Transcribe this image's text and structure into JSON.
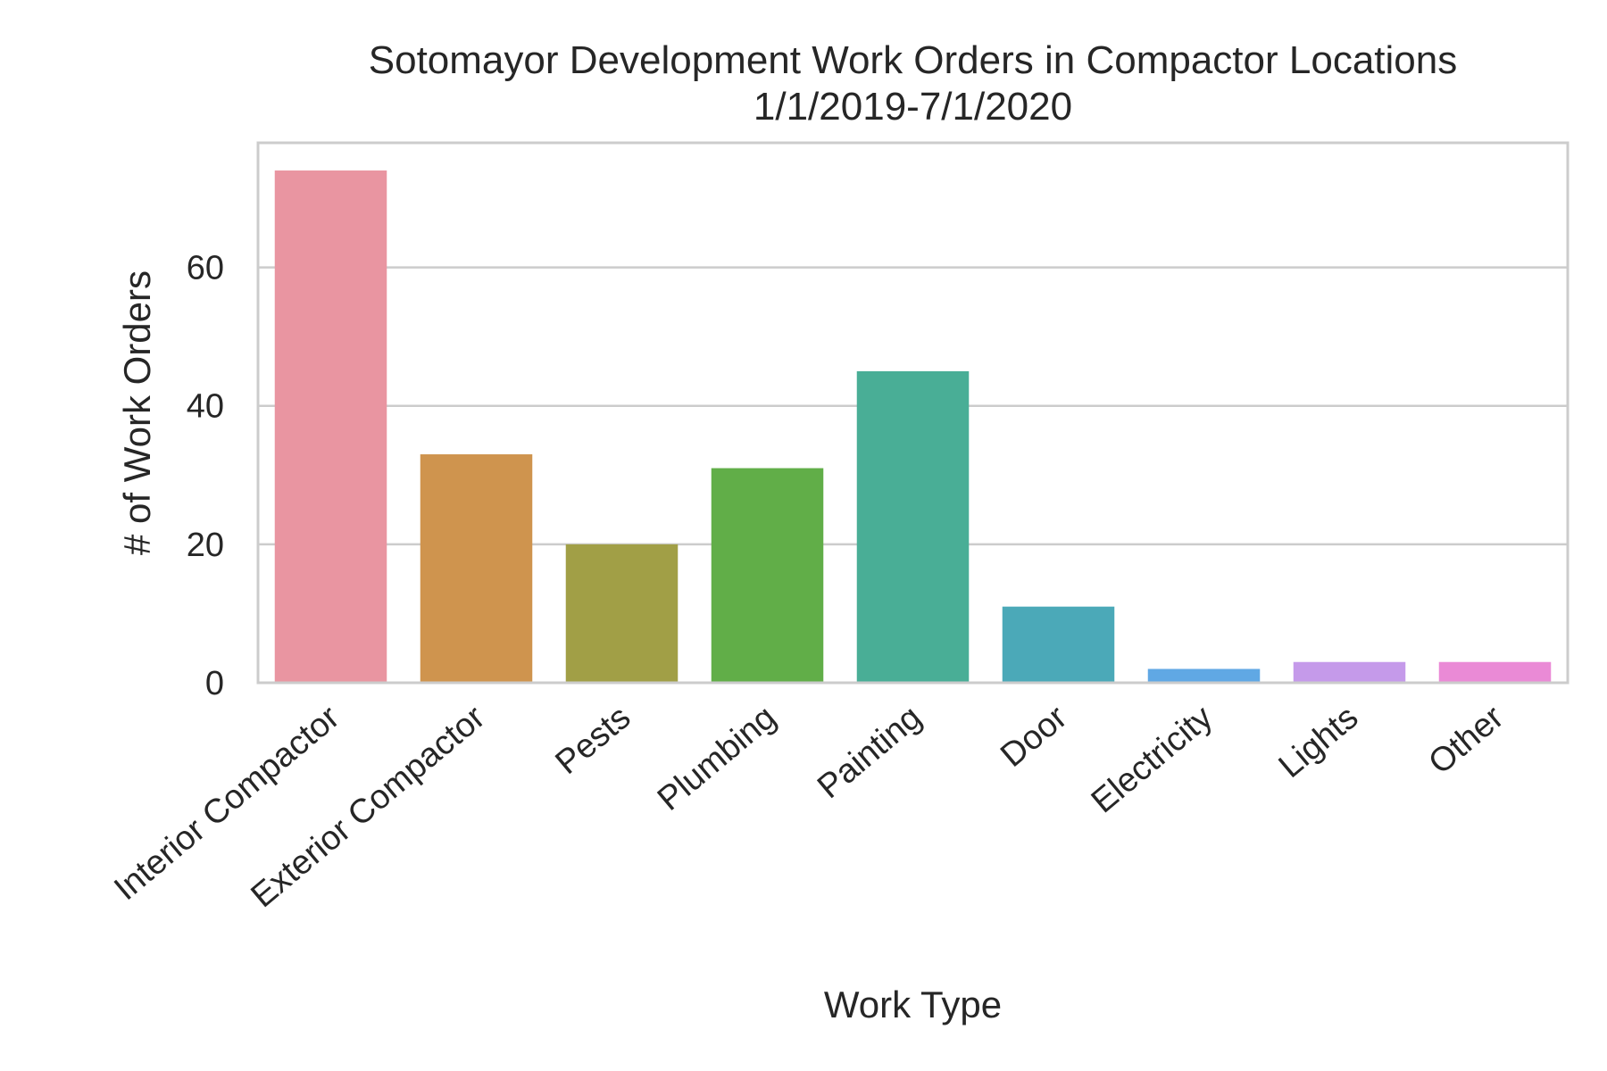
{
  "chart_data": {
    "type": "bar",
    "title": "Sotomayor Development Work Orders in Compactor Locations",
    "subtitle": "1/1/2019-7/1/2020",
    "xlabel": "Work Type",
    "ylabel": "# of Work Orders",
    "categories": [
      "Interior Compactor",
      "Exterior Compactor",
      "Pests",
      "Plumbing",
      "Painting",
      "Door",
      "Electricity",
      "Lights",
      "Other"
    ],
    "values": [
      74,
      33,
      20,
      31,
      45,
      11,
      2,
      3,
      3
    ],
    "colors": [
      "#e995a1",
      "#cf944e",
      "#a19f46",
      "#61ae48",
      "#49ae96",
      "#4ba9b8",
      "#60a8e4",
      "#c59aea",
      "#ea8ad6"
    ],
    "ylim": [
      0,
      78
    ],
    "yticks": [
      0,
      20,
      40,
      60
    ],
    "ytick_labels": [
      "0",
      "20",
      "40",
      "60"
    ],
    "grid": "horizontal",
    "legend": "none"
  }
}
